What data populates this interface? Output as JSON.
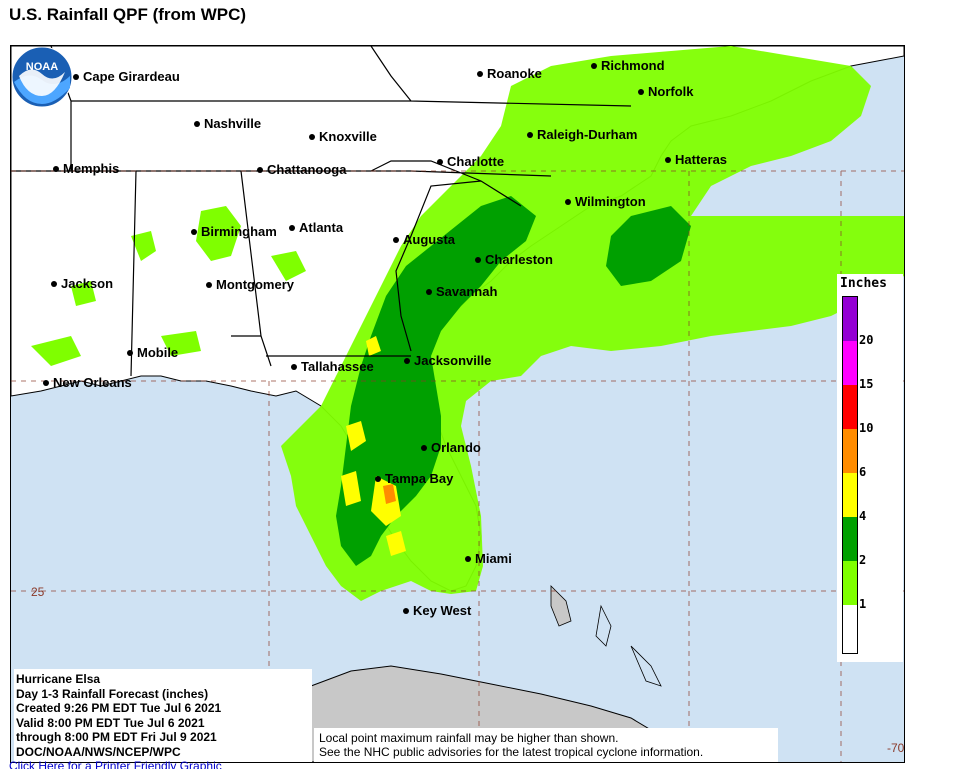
{
  "page": {
    "title": "U.S. Rainfall QPF (from WPC)",
    "printer_link": "Click Here for a Printer Friendly Graphic"
  },
  "map": {
    "colors": {
      "ocean": "#cfe2f3",
      "land": "#ffffff",
      "land_gray": "#c8c8c8",
      "rain_1": "#7fff00",
      "rain_2": "#00a000",
      "rain_4": "#ffff00",
      "rain_6": "#ff8c00",
      "rain_10": "#ff0000",
      "rain_15": "#ff00ff",
      "rain_20": "#9400d3"
    },
    "cities": [
      {
        "name": "Cape Girardeau"
      },
      {
        "name": "Roanoke"
      },
      {
        "name": "Richmond"
      },
      {
        "name": "Norfolk"
      },
      {
        "name": "Nashville"
      },
      {
        "name": "Knoxville"
      },
      {
        "name": "Raleigh-Durham"
      },
      {
        "name": "Memphis"
      },
      {
        "name": "Chattanooga"
      },
      {
        "name": "Charlotte"
      },
      {
        "name": "Hatteras"
      },
      {
        "name": "Wilmington"
      },
      {
        "name": "Birmingham"
      },
      {
        "name": "Atlanta"
      },
      {
        "name": "Augusta"
      },
      {
        "name": "Charleston"
      },
      {
        "name": "Jackson"
      },
      {
        "name": "Montgomery"
      },
      {
        "name": "Savannah"
      },
      {
        "name": "Mobile"
      },
      {
        "name": "Tallahassee"
      },
      {
        "name": "Jacksonville"
      },
      {
        "name": "New Orleans"
      },
      {
        "name": "Orlando"
      },
      {
        "name": "Tampa Bay"
      },
      {
        "name": "Miami"
      },
      {
        "name": "Key West"
      }
    ],
    "grid_labels": {
      "lat_25": "25",
      "lon_70": "-70"
    }
  },
  "legend": {
    "title": "Inches",
    "levels": [
      "20",
      "15",
      "10",
      "6",
      "4",
      "2",
      "1"
    ]
  },
  "info": {
    "lines": [
      "Hurricane Elsa",
      "Day 1-3 Rainfall Forecast (inches)",
      "Created 9:26 PM EDT Tue Jul 6 2021",
      "Valid 8:00 PM EDT Tue Jul 6 2021",
      "through 8:00 PM EDT Fri Jul 9 2021",
      "DOC/NOAA/NWS/NCEP/WPC"
    ],
    "notes": [
      "Local point maximum rainfall may be higher than shown.",
      "See the NHC public advisories for the latest tropical cyclone information."
    ]
  },
  "logo": {
    "text": "NOAA"
  }
}
